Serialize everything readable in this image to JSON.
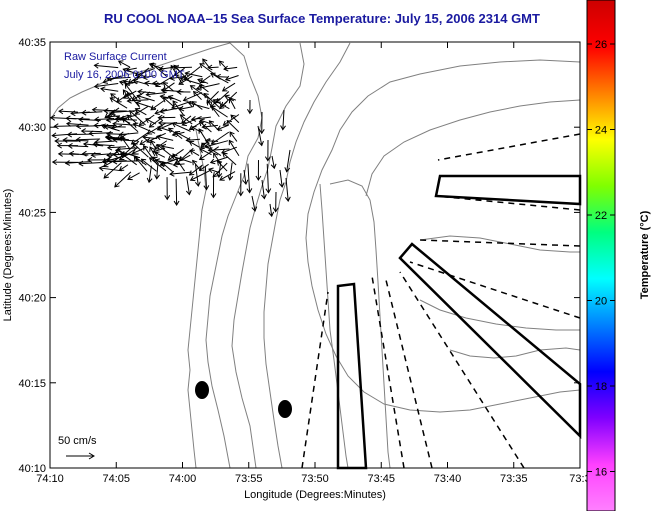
{
  "title": "RU COOL  NOAA–15  Sea Surface Temperature:  July 15, 2006 2314 GMT",
  "annotation": {
    "line1": "Raw Surface Current",
    "line2": "July 16, 2006 0100 GMT"
  },
  "scale_label": "50 cm/s",
  "axes": {
    "xlabel": "Longitude (Degrees:Minutes)",
    "ylabel": "Latitude (Degrees:Minutes)",
    "xticks": [
      "74:10",
      "74:05",
      "74:00",
      "73:55",
      "73:50",
      "73:45",
      "73:40",
      "73:35",
      "73:3"
    ],
    "yticks": [
      "40:35",
      "40:30",
      "40:25",
      "40:20",
      "40:15",
      "40:10"
    ]
  },
  "colorbar": {
    "label": "Temperature (°C)",
    "ticks": [
      "26",
      "24",
      "22",
      "20",
      "18",
      "16"
    ],
    "colors": [
      "#cc0000",
      "#ff0000",
      "#ff8000",
      "#ffff00",
      "#80ff00",
      "#00ff80",
      "#00ffff",
      "#0080ff",
      "#0000ff",
      "#8000ff",
      "#ff40ff",
      "#ff80ff"
    ]
  },
  "colors": {
    "title": "#1a1aa0",
    "contour": "#808080",
    "vector": "#000000",
    "frame": "#000000"
  }
}
